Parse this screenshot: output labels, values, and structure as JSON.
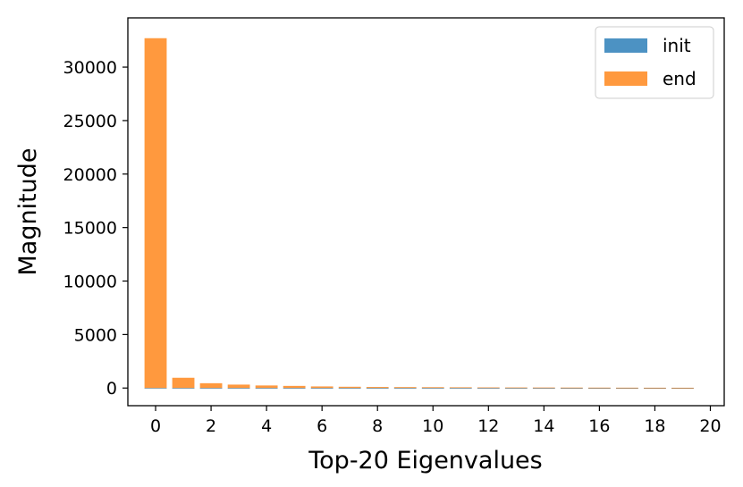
{
  "chart_data": {
    "type": "bar",
    "xlabel": "Top-20 Eigenvalues",
    "ylabel": "Magnitude",
    "xlim": [
      -1.0,
      20.5
    ],
    "ylim": [
      -1650,
      34600
    ],
    "x_ticks": [
      0,
      2,
      4,
      6,
      8,
      10,
      12,
      14,
      16,
      18,
      20
    ],
    "y_ticks": [
      0,
      5000,
      10000,
      15000,
      20000,
      25000,
      30000
    ],
    "x": [
      0,
      1,
      2,
      3,
      4,
      5,
      6,
      7,
      8,
      9,
      10,
      11,
      12,
      13,
      14,
      15,
      16,
      17,
      18,
      19
    ],
    "series": [
      {
        "name": "init",
        "color": "#1f77b4",
        "values": [
          20,
          10,
          8,
          6,
          5,
          4,
          4,
          3,
          3,
          3,
          2,
          2,
          2,
          2,
          2,
          2,
          1,
          1,
          1,
          1
        ]
      },
      {
        "name": "end",
        "color": "#ff7f0e",
        "values": [
          32700,
          960,
          450,
          320,
          240,
          200,
          150,
          120,
          100,
          90,
          80,
          70,
          60,
          55,
          50,
          45,
          40,
          35,
          30,
          28
        ]
      }
    ],
    "legend": {
      "position": "top-right",
      "entries": [
        "init",
        "end"
      ]
    },
    "grid": false
  }
}
